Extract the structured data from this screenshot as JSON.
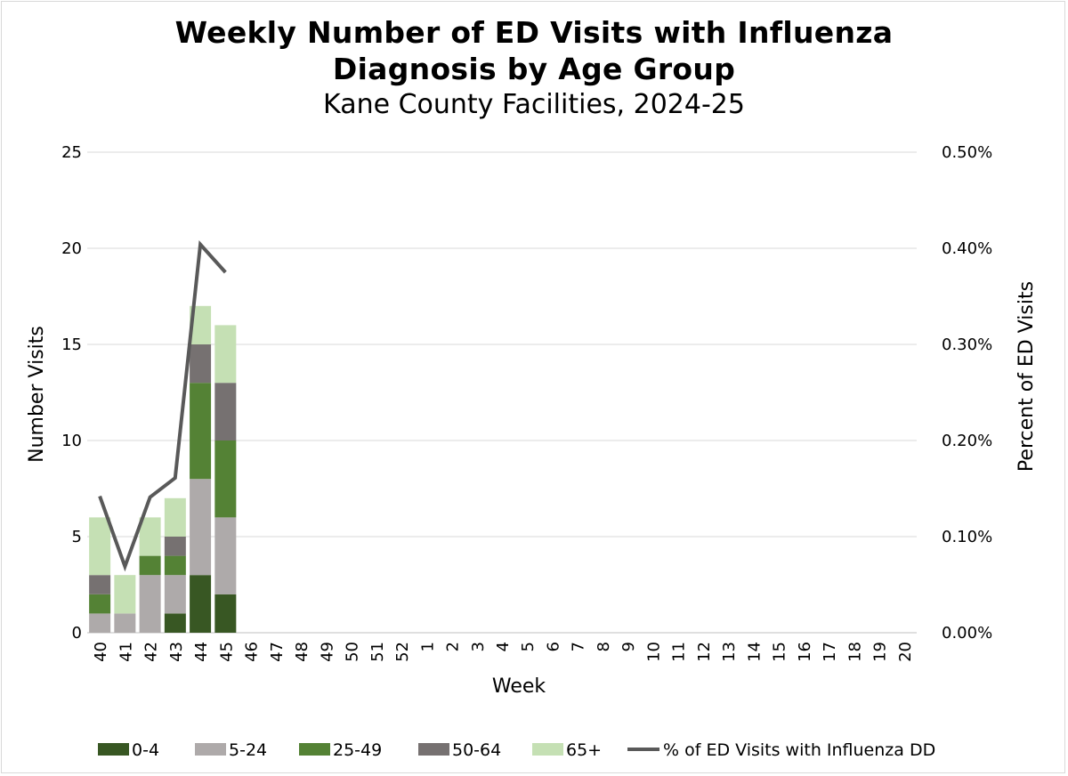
{
  "chart_data": {
    "type": "bar",
    "title_line1": "Weekly Number of ED Visits with Influenza",
    "title_line2": "Diagnosis by Age Group",
    "subtitle": "Kane County Facilities, 2024-25",
    "xlabel": "Week",
    "ylabel": "Number Visits",
    "y2label": "Percent of ED Visits",
    "ylim": [
      0,
      25
    ],
    "yticks": [
      "0",
      "5",
      "10",
      "15",
      "20",
      "25"
    ],
    "y2lim": [
      0,
      0.5
    ],
    "y2ticks": [
      "0.00%",
      "0.10%",
      "0.20%",
      "0.30%",
      "0.40%",
      "0.50%"
    ],
    "grid": true,
    "legend_position": "bottom",
    "categories": [
      "40",
      "41",
      "42",
      "43",
      "44",
      "45",
      "46",
      "47",
      "48",
      "49",
      "50",
      "51",
      "52",
      "1",
      "2",
      "3",
      "4",
      "5",
      "6",
      "7",
      "8",
      "9",
      "10",
      "11",
      "12",
      "13",
      "14",
      "15",
      "16",
      "17",
      "18",
      "19",
      "20"
    ],
    "series": [
      {
        "name": "0-4",
        "color": "#385723",
        "values": [
          0,
          0,
          0,
          1,
          3,
          2,
          null,
          null,
          null,
          null,
          null,
          null,
          null,
          null,
          null,
          null,
          null,
          null,
          null,
          null,
          null,
          null,
          null,
          null,
          null,
          null,
          null,
          null,
          null,
          null,
          null,
          null,
          null
        ]
      },
      {
        "name": "5-24",
        "color": "#aeaaaa",
        "values": [
          1,
          1,
          3,
          2,
          5,
          4,
          null,
          null,
          null,
          null,
          null,
          null,
          null,
          null,
          null,
          null,
          null,
          null,
          null,
          null,
          null,
          null,
          null,
          null,
          null,
          null,
          null,
          null,
          null,
          null,
          null,
          null,
          null
        ]
      },
      {
        "name": "25-49",
        "color": "#548235",
        "values": [
          1,
          0,
          1,
          1,
          5,
          4,
          null,
          null,
          null,
          null,
          null,
          null,
          null,
          null,
          null,
          null,
          null,
          null,
          null,
          null,
          null,
          null,
          null,
          null,
          null,
          null,
          null,
          null,
          null,
          null,
          null,
          null,
          null
        ]
      },
      {
        "name": "50-64",
        "color": "#767171",
        "values": [
          1,
          0,
          0,
          1,
          2,
          3,
          null,
          null,
          null,
          null,
          null,
          null,
          null,
          null,
          null,
          null,
          null,
          null,
          null,
          null,
          null,
          null,
          null,
          null,
          null,
          null,
          null,
          null,
          null,
          null,
          null,
          null,
          null
        ]
      },
      {
        "name": "65+",
        "color": "#c5e0b4",
        "values": [
          3,
          2,
          2,
          2,
          2,
          3,
          null,
          null,
          null,
          null,
          null,
          null,
          null,
          null,
          null,
          null,
          null,
          null,
          null,
          null,
          null,
          null,
          null,
          null,
          null,
          null,
          null,
          null,
          null,
          null,
          null,
          null,
          null
        ]
      }
    ],
    "line_series": {
      "name": "% of ED Visits with Influenza DD",
      "color": "#595959",
      "axis": "secondary",
      "values": [
        0.142,
        0.069,
        0.141,
        0.161,
        0.404,
        0.375,
        null,
        null,
        null,
        null,
        null,
        null,
        null,
        null,
        null,
        null,
        null,
        null,
        null,
        null,
        null,
        null,
        null,
        null,
        null,
        null,
        null,
        null,
        null,
        null,
        null,
        null,
        null
      ]
    }
  }
}
